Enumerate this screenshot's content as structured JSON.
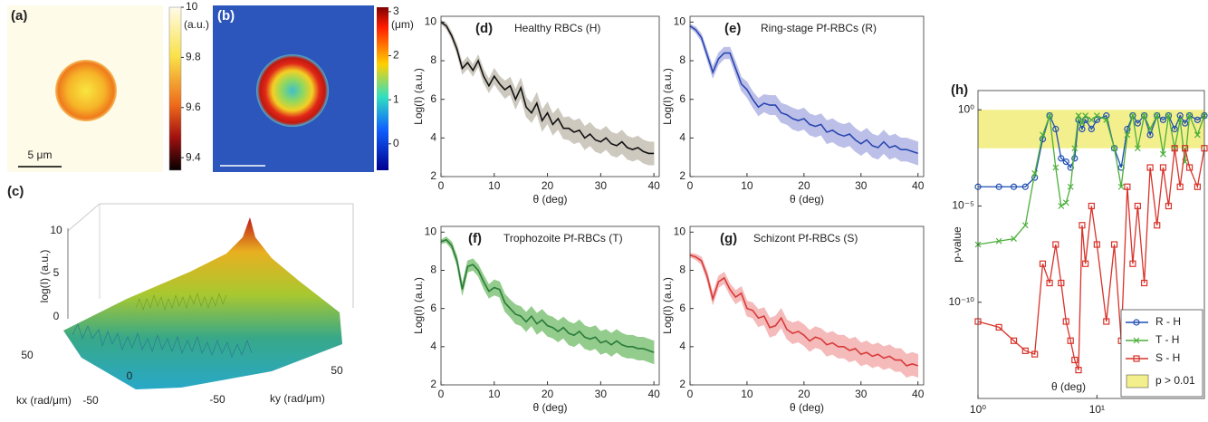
{
  "panels": {
    "a": {
      "label": "(a)",
      "unit": "(a.u.)",
      "colorbar_ticks": [
        10,
        9.8,
        9.6,
        9.4
      ],
      "colorbar_range": [
        9.35,
        10.0
      ],
      "scale_bar": "5 μm"
    },
    "b": {
      "label": "(b)",
      "unit": "(μm)",
      "colorbar_ticks": [
        3,
        2,
        1,
        0
      ],
      "colorbar_range": [
        -0.6,
        3.1
      ]
    },
    "c": {
      "label": "(c)",
      "z_label": "log(I) (a.u.)",
      "z_ticks": [
        10,
        5,
        0
      ],
      "kx_label": "kx (rad/μm)",
      "kx_ticks": [
        50,
        0,
        -50
      ],
      "ky_label": "ky (rad/μm)",
      "ky_ticks": [
        -50,
        50
      ]
    }
  },
  "chart_data": [
    {
      "type": "line",
      "panel_label": "(d)",
      "title": "Healthy RBCs (H)",
      "x_label": "θ (deg)",
      "y_label": "Log(I) (a.u.)",
      "xlim": [
        0,
        41
      ],
      "ylim": [
        2,
        10.3
      ],
      "xticks": [
        0,
        10,
        20,
        30,
        40
      ],
      "yticks": [
        2,
        4,
        6,
        8,
        10
      ],
      "color": "#111111",
      "band_color": "#cdc9bf",
      "x": [
        0,
        1,
        2,
        3,
        4,
        5,
        6,
        7,
        8,
        9,
        10,
        11,
        12,
        13,
        14,
        15,
        16,
        17,
        18,
        19,
        20,
        21,
        22,
        23,
        24,
        25,
        26,
        27,
        28,
        29,
        30,
        31,
        32,
        33,
        34,
        35,
        36,
        37,
        38,
        39,
        40
      ],
      "values": [
        10,
        9.8,
        9.3,
        8.6,
        7.6,
        7.9,
        7.5,
        8.0,
        7.2,
        6.7,
        7.2,
        6.8,
        6.5,
        6.7,
        6.0,
        6.6,
        5.6,
        5.3,
        5.8,
        4.9,
        5.3,
        4.7,
        5.0,
        4.5,
        4.5,
        4.3,
        4.4,
        4.0,
        4.2,
        3.9,
        3.8,
        4.0,
        3.7,
        3.6,
        3.8,
        3.5,
        3.4,
        3.5,
        3.3,
        3.2,
        3.2
      ],
      "errors": [
        0.1,
        0.15,
        0.2,
        0.25,
        0.3,
        0.3,
        0.3,
        0.3,
        0.35,
        0.35,
        0.4,
        0.4,
        0.45,
        0.45,
        0.5,
        0.5,
        0.5,
        0.5,
        0.55,
        0.55,
        0.55,
        0.55,
        0.55,
        0.55,
        0.6,
        0.6,
        0.6,
        0.6,
        0.6,
        0.6,
        0.6,
        0.6,
        0.6,
        0.6,
        0.6,
        0.6,
        0.6,
        0.6,
        0.6,
        0.6,
        0.6
      ]
    },
    {
      "type": "line",
      "panel_label": "(e)",
      "title": "Ring-stage Pf-RBCs (R)",
      "x_label": "θ (deg)",
      "y_label": "Log(I) (a.u.)",
      "xlim": [
        0,
        41
      ],
      "ylim": [
        2,
        10.3
      ],
      "xticks": [
        0,
        10,
        20,
        30,
        40
      ],
      "yticks": [
        2,
        4,
        6,
        8,
        10
      ],
      "color": "#2a46b0",
      "band_color": "#bcc0e8",
      "x": [
        0,
        1,
        2,
        3,
        4,
        5,
        6,
        7,
        8,
        9,
        10,
        11,
        12,
        13,
        14,
        15,
        16,
        17,
        18,
        19,
        20,
        21,
        22,
        23,
        24,
        25,
        26,
        27,
        28,
        29,
        30,
        31,
        32,
        33,
        34,
        35,
        36,
        37,
        38,
        39,
        40
      ],
      "values": [
        9.8,
        9.6,
        9.2,
        8.3,
        7.4,
        8.1,
        8.4,
        8.4,
        7.6,
        6.8,
        6.5,
        6.0,
        5.6,
        5.8,
        5.7,
        5.7,
        5.3,
        5.2,
        5.0,
        4.9,
        5.0,
        4.7,
        4.6,
        4.7,
        4.3,
        4.4,
        4.2,
        4.1,
        4.2,
        3.9,
        3.7,
        3.9,
        3.6,
        3.5,
        3.8,
        3.5,
        3.6,
        3.4,
        3.4,
        3.3,
        3.2
      ],
      "errors": [
        0.1,
        0.15,
        0.2,
        0.25,
        0.3,
        0.3,
        0.3,
        0.3,
        0.35,
        0.35,
        0.4,
        0.4,
        0.45,
        0.45,
        0.5,
        0.5,
        0.5,
        0.5,
        0.55,
        0.55,
        0.55,
        0.55,
        0.55,
        0.55,
        0.6,
        0.6,
        0.6,
        0.6,
        0.6,
        0.6,
        0.6,
        0.6,
        0.6,
        0.6,
        0.6,
        0.6,
        0.6,
        0.6,
        0.6,
        0.6,
        0.6
      ]
    },
    {
      "type": "line",
      "panel_label": "(f)",
      "title": "Trophozoite Pf-RBCs (T)",
      "x_label": "θ (deg)",
      "y_label": "Log(I) (a.u.)",
      "xlim": [
        0,
        41
      ],
      "ylim": [
        2,
        10.3
      ],
      "xticks": [
        0,
        10,
        20,
        30,
        40
      ],
      "yticks": [
        2,
        4,
        6,
        8,
        10
      ],
      "color": "#2a7a3a",
      "band_color": "#93cc8c",
      "x": [
        0,
        1,
        2,
        3,
        4,
        5,
        6,
        7,
        8,
        9,
        10,
        11,
        12,
        13,
        14,
        15,
        16,
        17,
        18,
        19,
        20,
        21,
        22,
        23,
        24,
        25,
        26,
        27,
        28,
        29,
        30,
        31,
        32,
        33,
        34,
        35,
        36,
        37,
        38,
        39,
        40
      ],
      "values": [
        9.5,
        9.6,
        9.3,
        8.5,
        7.0,
        8.2,
        8.3,
        8.0,
        7.4,
        6.9,
        7.1,
        7.0,
        6.3,
        6.0,
        5.7,
        5.6,
        5.3,
        5.6,
        5.2,
        5.4,
        5.1,
        5.0,
        4.8,
        5.0,
        4.7,
        4.6,
        4.8,
        4.5,
        4.4,
        4.5,
        4.2,
        4.3,
        4.1,
        4.3,
        4.1,
        4.0,
        4.0,
        3.9,
        3.9,
        3.8,
        3.7
      ],
      "errors": [
        0.1,
        0.15,
        0.2,
        0.25,
        0.3,
        0.3,
        0.3,
        0.3,
        0.35,
        0.35,
        0.4,
        0.4,
        0.45,
        0.45,
        0.5,
        0.5,
        0.5,
        0.5,
        0.55,
        0.55,
        0.55,
        0.55,
        0.55,
        0.55,
        0.6,
        0.6,
        0.6,
        0.6,
        0.6,
        0.6,
        0.6,
        0.6,
        0.6,
        0.6,
        0.6,
        0.6,
        0.6,
        0.6,
        0.6,
        0.6,
        0.6
      ]
    },
    {
      "type": "line",
      "panel_label": "(g)",
      "title": "Schizont Pf-RBCs (S)",
      "x_label": "θ (deg)",
      "y_label": "Log(I) (a.u.)",
      "xlim": [
        0,
        41
      ],
      "ylim": [
        2,
        10.3
      ],
      "xticks": [
        0,
        10,
        20,
        30,
        40
      ],
      "yticks": [
        2,
        4,
        6,
        8,
        10
      ],
      "color": "#d83a3a",
      "band_color": "#f5baba",
      "x": [
        0,
        1,
        2,
        3,
        4,
        5,
        6,
        7,
        8,
        9,
        10,
        11,
        12,
        13,
        14,
        15,
        16,
        17,
        18,
        19,
        20,
        21,
        22,
        23,
        24,
        25,
        26,
        27,
        28,
        29,
        30,
        31,
        32,
        33,
        34,
        35,
        36,
        37,
        38,
        39,
        40
      ],
      "values": [
        8.8,
        8.7,
        8.5,
        7.7,
        6.5,
        7.4,
        7.6,
        7.0,
        6.6,
        6.8,
        6.0,
        5.9,
        5.5,
        5.6,
        5.0,
        5.1,
        5.5,
        4.9,
        4.7,
        4.8,
        4.6,
        4.3,
        4.5,
        4.4,
        4.1,
        4.2,
        4.0,
        4.0,
        3.8,
        3.9,
        3.6,
        3.7,
        3.5,
        3.6,
        3.4,
        3.5,
        3.3,
        3.3,
        3.0,
        3.1,
        3.0
      ],
      "errors": [
        0.1,
        0.15,
        0.2,
        0.25,
        0.3,
        0.3,
        0.3,
        0.3,
        0.35,
        0.35,
        0.4,
        0.4,
        0.45,
        0.45,
        0.5,
        0.5,
        0.5,
        0.5,
        0.55,
        0.55,
        0.55,
        0.55,
        0.55,
        0.55,
        0.6,
        0.6,
        0.6,
        0.6,
        0.6,
        0.6,
        0.6,
        0.6,
        0.6,
        0.6,
        0.6,
        0.6,
        0.6,
        0.6,
        0.6,
        0.6,
        0.6
      ]
    },
    {
      "type": "loglog",
      "panel_label": "(h)",
      "x_label": "θ (deg)",
      "y_label": "p-value",
      "log_x": true,
      "log_y": true,
      "xlim": [
        1,
        80
      ],
      "ylim": [
        1e-15,
        10
      ],
      "xticks": [
        {
          "value": 1,
          "label": "10⁰"
        },
        {
          "value": 10,
          "label": "10¹"
        }
      ],
      "yticks": [
        {
          "value": 1,
          "label": "10⁰"
        },
        {
          "value": 1e-05,
          "label": "10⁻⁵"
        },
        {
          "value": 1e-10,
          "label": "10⁻¹⁰"
        }
      ],
      "shaded_region": {
        "ylim": [
          0.01,
          1
        ],
        "label": "p > 0.01",
        "color": "#f3ef8c"
      },
      "legend": "lower right",
      "x": [
        1,
        1.5,
        2,
        2.5,
        3,
        3.5,
        4,
        4.5,
        5,
        5.5,
        6,
        6.5,
        7,
        7.5,
        8,
        9,
        10,
        12,
        14,
        16,
        18,
        20,
        22,
        25,
        28,
        32,
        36,
        40,
        45,
        50,
        55,
        60,
        70,
        80
      ],
      "series": [
        {
          "name": "R - H",
          "color": "#1f4fb4",
          "marker": "circle",
          "values": [
            0.0001,
            0.0001,
            0.0001,
            0.0001,
            0.0003,
            0.03,
            0.5,
            0.1,
            0.003,
            0.002,
            0.001,
            0.003,
            0.3,
            0.1,
            0.3,
            0.1,
            0.3,
            0.5,
            0.01,
            0.001,
            0.1,
            0.5,
            0.2,
            0.5,
            0.05,
            0.5,
            0.3,
            0.5,
            0.1,
            0.5,
            0.2,
            0.5,
            0.3,
            0.5
          ]
        },
        {
          "name": "T - H",
          "color": "#4caf3a",
          "marker": "cross",
          "values": [
            1e-07,
            1.5e-07,
            2e-07,
            1e-06,
            0.0005,
            0.05,
            0.5,
            0.001,
            1e-05,
            1.5e-05,
            0.0001,
            0.01,
            0.5,
            0.2,
            0.5,
            0.3,
            0.5,
            0.3,
            0.01,
            0.0001,
            0.05,
            0.5,
            0.01,
            0.5,
            0.1,
            0.5,
            0.005,
            0.5,
            0.01,
            0.3,
            0.002,
            0.5,
            0.05,
            0.5
          ]
        },
        {
          "name": "S - H",
          "color": "#d8332a",
          "marker": "square",
          "values": [
            1e-11,
            5e-12,
            1e-12,
            3e-13,
            2e-13,
            1e-08,
            1e-09,
            1e-07,
            1e-09,
            1e-11,
            1e-12,
            1e-13,
            3e-14,
            1e-06,
            1e-08,
            1e-05,
            1e-07,
            1e-11,
            1e-07,
            1e-12,
            0.0001,
            1e-08,
            1e-05,
            1e-09,
            0.001,
            1e-06,
            0.001,
            1e-05,
            0.01,
            0.0001,
            0.01,
            0.001,
            0.0001,
            0.01
          ]
        }
      ]
    }
  ]
}
